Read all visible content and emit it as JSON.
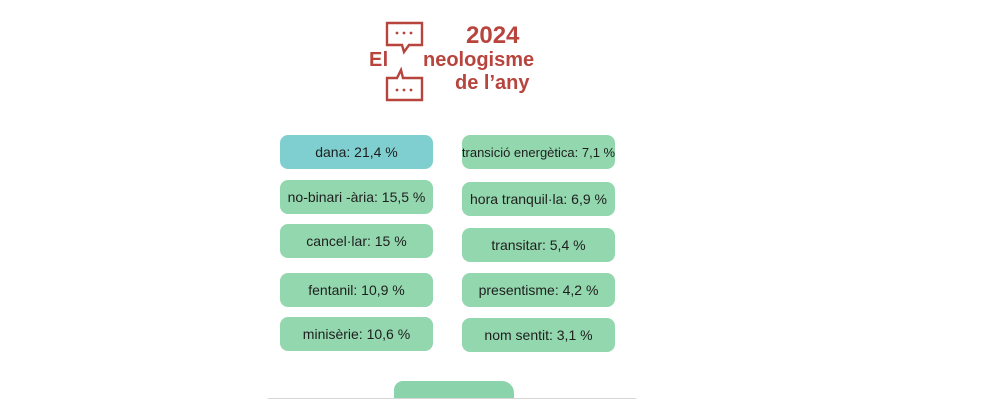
{
  "logo": {
    "word_el": "El",
    "year": "2024",
    "word_neologisme": "neologisme",
    "word_de_lany": "de l’any",
    "icon": "speech-bubbles-icon",
    "color": "#b8443e"
  },
  "results": {
    "left": [
      {
        "label": "dana: 21,4 %"
      },
      {
        "label": "no-binari -ària: 15,5 %"
      },
      {
        "label": "cancel·lar: 15 %"
      },
      {
        "label": "fentanil: 10,9 %"
      },
      {
        "label": "minisèrie: 10,6 %"
      }
    ],
    "right": [
      {
        "label": "transició energètica: 7,1 %"
      },
      {
        "label": "hora tranquil·la: 6,9 %"
      },
      {
        "label": "transitar: 5,4 %"
      },
      {
        "label": "presentisme: 4,2 %"
      },
      {
        "label": "nom sentit: 3,1 %"
      }
    ]
  },
  "colors": {
    "pill_green": "#93d7ae",
    "pill_highlight": "#7fcfd0",
    "brand_red": "#b8443e"
  }
}
